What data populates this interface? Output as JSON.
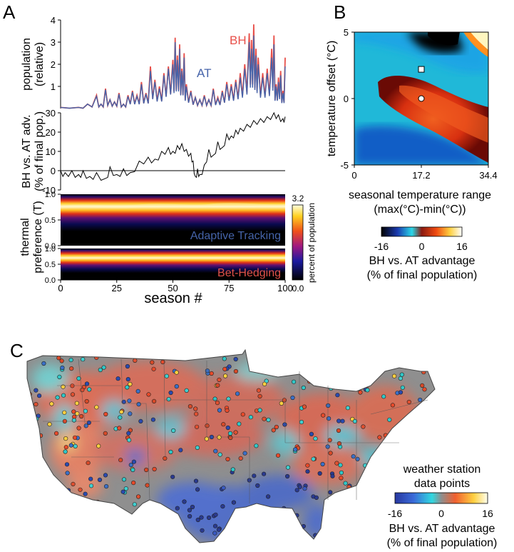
{
  "panels": {
    "a_label": "A",
    "b_label": "B",
    "c_label": "C"
  },
  "chart_data": [
    {
      "id": "population",
      "type": "line",
      "ylabel_line1": "population",
      "ylabel_line2": "(relative)",
      "ylim": [
        0,
        4
      ],
      "yticks": [
        "1",
        "2",
        "3",
        "4"
      ],
      "xlim": [
        0,
        100
      ],
      "series": [
        {
          "name": "BH",
          "color": "#e8504a",
          "x": [
            0,
            8,
            12,
            16,
            18,
            20,
            22,
            24,
            26,
            28,
            30,
            32,
            34,
            36,
            38,
            40,
            42,
            44,
            46,
            48,
            50,
            51,
            52,
            53,
            54,
            55,
            56,
            58,
            60,
            62,
            64,
            66,
            68,
            70,
            72,
            74,
            76,
            78,
            80,
            82,
            84,
            85,
            86,
            87,
            88,
            90,
            92,
            94,
            95,
            96,
            97,
            98,
            99,
            100
          ],
          "values": [
            0.05,
            0.05,
            0.2,
            0.6,
            0.2,
            0.9,
            0.4,
            0.3,
            0.7,
            0.2,
            0.6,
            0.8,
            0.6,
            1.2,
            0.7,
            1.9,
            1.3,
            1.0,
            1.6,
            1.9,
            2.2,
            3.2,
            2.4,
            2.9,
            1.8,
            2.5,
            1.1,
            0.8,
            0.5,
            0.4,
            0.6,
            0.4,
            0.9,
            0.5,
            0.8,
            1.2,
            1.1,
            1.3,
            1.6,
            2.0,
            3.4,
            3.1,
            3.8,
            2.7,
            2.3,
            1.6,
            1.8,
            2.7,
            3.3,
            1.1,
            1.4,
            1.7,
            0.8,
            2.3
          ]
        },
        {
          "name": "AT",
          "color": "#4563a9",
          "x": [
            0,
            8,
            12,
            16,
            18,
            20,
            22,
            24,
            26,
            28,
            30,
            32,
            34,
            36,
            38,
            40,
            42,
            44,
            46,
            48,
            50,
            51,
            52,
            53,
            54,
            55,
            56,
            58,
            60,
            62,
            64,
            66,
            68,
            70,
            72,
            74,
            76,
            78,
            80,
            82,
            84,
            85,
            86,
            87,
            88,
            90,
            92,
            94,
            95,
            96,
            97,
            98,
            99,
            100
          ],
          "values": [
            0.05,
            0.05,
            0.2,
            0.55,
            0.2,
            0.85,
            0.4,
            0.3,
            0.65,
            0.2,
            0.55,
            0.75,
            0.55,
            1.1,
            0.65,
            1.7,
            1.2,
            0.9,
            1.5,
            1.8,
            2.0,
            3.0,
            2.2,
            2.7,
            1.7,
            2.3,
            1.0,
            0.75,
            0.5,
            0.4,
            0.55,
            0.4,
            0.85,
            0.45,
            0.75,
            1.1,
            1.0,
            1.2,
            1.4,
            1.8,
            3.0,
            2.7,
            3.3,
            2.4,
            2.0,
            1.4,
            1.6,
            2.3,
            2.9,
            1.0,
            1.2,
            1.5,
            0.7,
            1.9
          ]
        }
      ]
    },
    {
      "id": "advantage",
      "type": "line",
      "ylabel_line1": "BH vs. AT adv.",
      "ylabel_line2": "(% of final pop.)",
      "ylim": [
        -10,
        30
      ],
      "yticks": [
        "-10",
        "0",
        "10",
        "20",
        "30"
      ],
      "xlim": [
        0,
        100
      ],
      "series": [
        {
          "name": "",
          "color": "#000000",
          "x": [
            0,
            2,
            5,
            8,
            10,
            13,
            16,
            20,
            22,
            25,
            28,
            31,
            35,
            39,
            42,
            45,
            48,
            50,
            52,
            54,
            56,
            58,
            59,
            60,
            61,
            62,
            64,
            66,
            68,
            70,
            72,
            74,
            76,
            78,
            80,
            83,
            86,
            89,
            92,
            95,
            97,
            99,
            100
          ],
          "values": [
            0,
            -1,
            0,
            -2,
            0,
            -3,
            -1,
            -4,
            2,
            -2,
            1,
            -1,
            5,
            7,
            6,
            10,
            12,
            10,
            13,
            14,
            11,
            9,
            5,
            -3,
            1,
            -2,
            3,
            11,
            8,
            15,
            12,
            19,
            18,
            21,
            22,
            24,
            26,
            27,
            28,
            30,
            29,
            27,
            28
          ]
        }
      ]
    },
    {
      "id": "heatmap_adaptive_tracking",
      "type": "heatmap",
      "ylabel_line1": "thermal",
      "ylabel_line2": "preference (T)",
      "yticks": [
        "0.0",
        "0.5",
        "1.0"
      ],
      "label": "Adaptive Tracking",
      "label_color": "#4563a9",
      "band_center": 0.75,
      "band_width": 0.13
    },
    {
      "id": "heatmap_bet_hedging",
      "type": "heatmap",
      "yticks": [
        "0.0",
        "0.5",
        "1.0"
      ],
      "label": "Bet-Hedging",
      "label_color": "#e0524a",
      "band_center": 0.7,
      "band_width": 0.12
    },
    {
      "id": "colorbar_a",
      "type": "colorbar",
      "top_label": "3.2",
      "bottom_label": "0.0",
      "title": "percent of population"
    },
    {
      "id": "x_axis_a",
      "xticks": [
        "0",
        "25",
        "50",
        "75",
        "100"
      ],
      "xlabel": "season #"
    },
    {
      "id": "phase_diagram",
      "type": "heatmap",
      "xticks": [
        "0",
        "17.2",
        "34.4"
      ],
      "yticks": [
        "-5",
        "0",
        "5"
      ],
      "xlim": [
        0,
        34.4
      ],
      "ylim": [
        -5,
        5
      ],
      "ylabel": "temperature offset (°C)",
      "xlabel_line1": "seasonal temperature range",
      "xlabel_line2": "(max(°C)-min(°C))",
      "markers": [
        {
          "shape": "square",
          "x": 17.2,
          "y": 2.2
        },
        {
          "shape": "circle",
          "x": 17.2,
          "y": 0
        }
      ]
    },
    {
      "id": "colorbar_b",
      "type": "colorbar",
      "ticks": [
        "-16",
        "0",
        "16"
      ],
      "title_line1": "BH vs. AT advantage",
      "title_line2": "(% of final population)"
    },
    {
      "id": "map",
      "type": "scatter",
      "legend_title_line1": "weather station",
      "legend_title_line2": "data points",
      "ticks": [
        "-16",
        "0",
        "16"
      ],
      "cbar_title_line1": "BH vs. AT advantage",
      "cbar_title_line2": "(% of final population)"
    }
  ],
  "colors": {
    "bh": "#e8504a",
    "at": "#4563a9",
    "map_background": "#8f8f8f"
  }
}
